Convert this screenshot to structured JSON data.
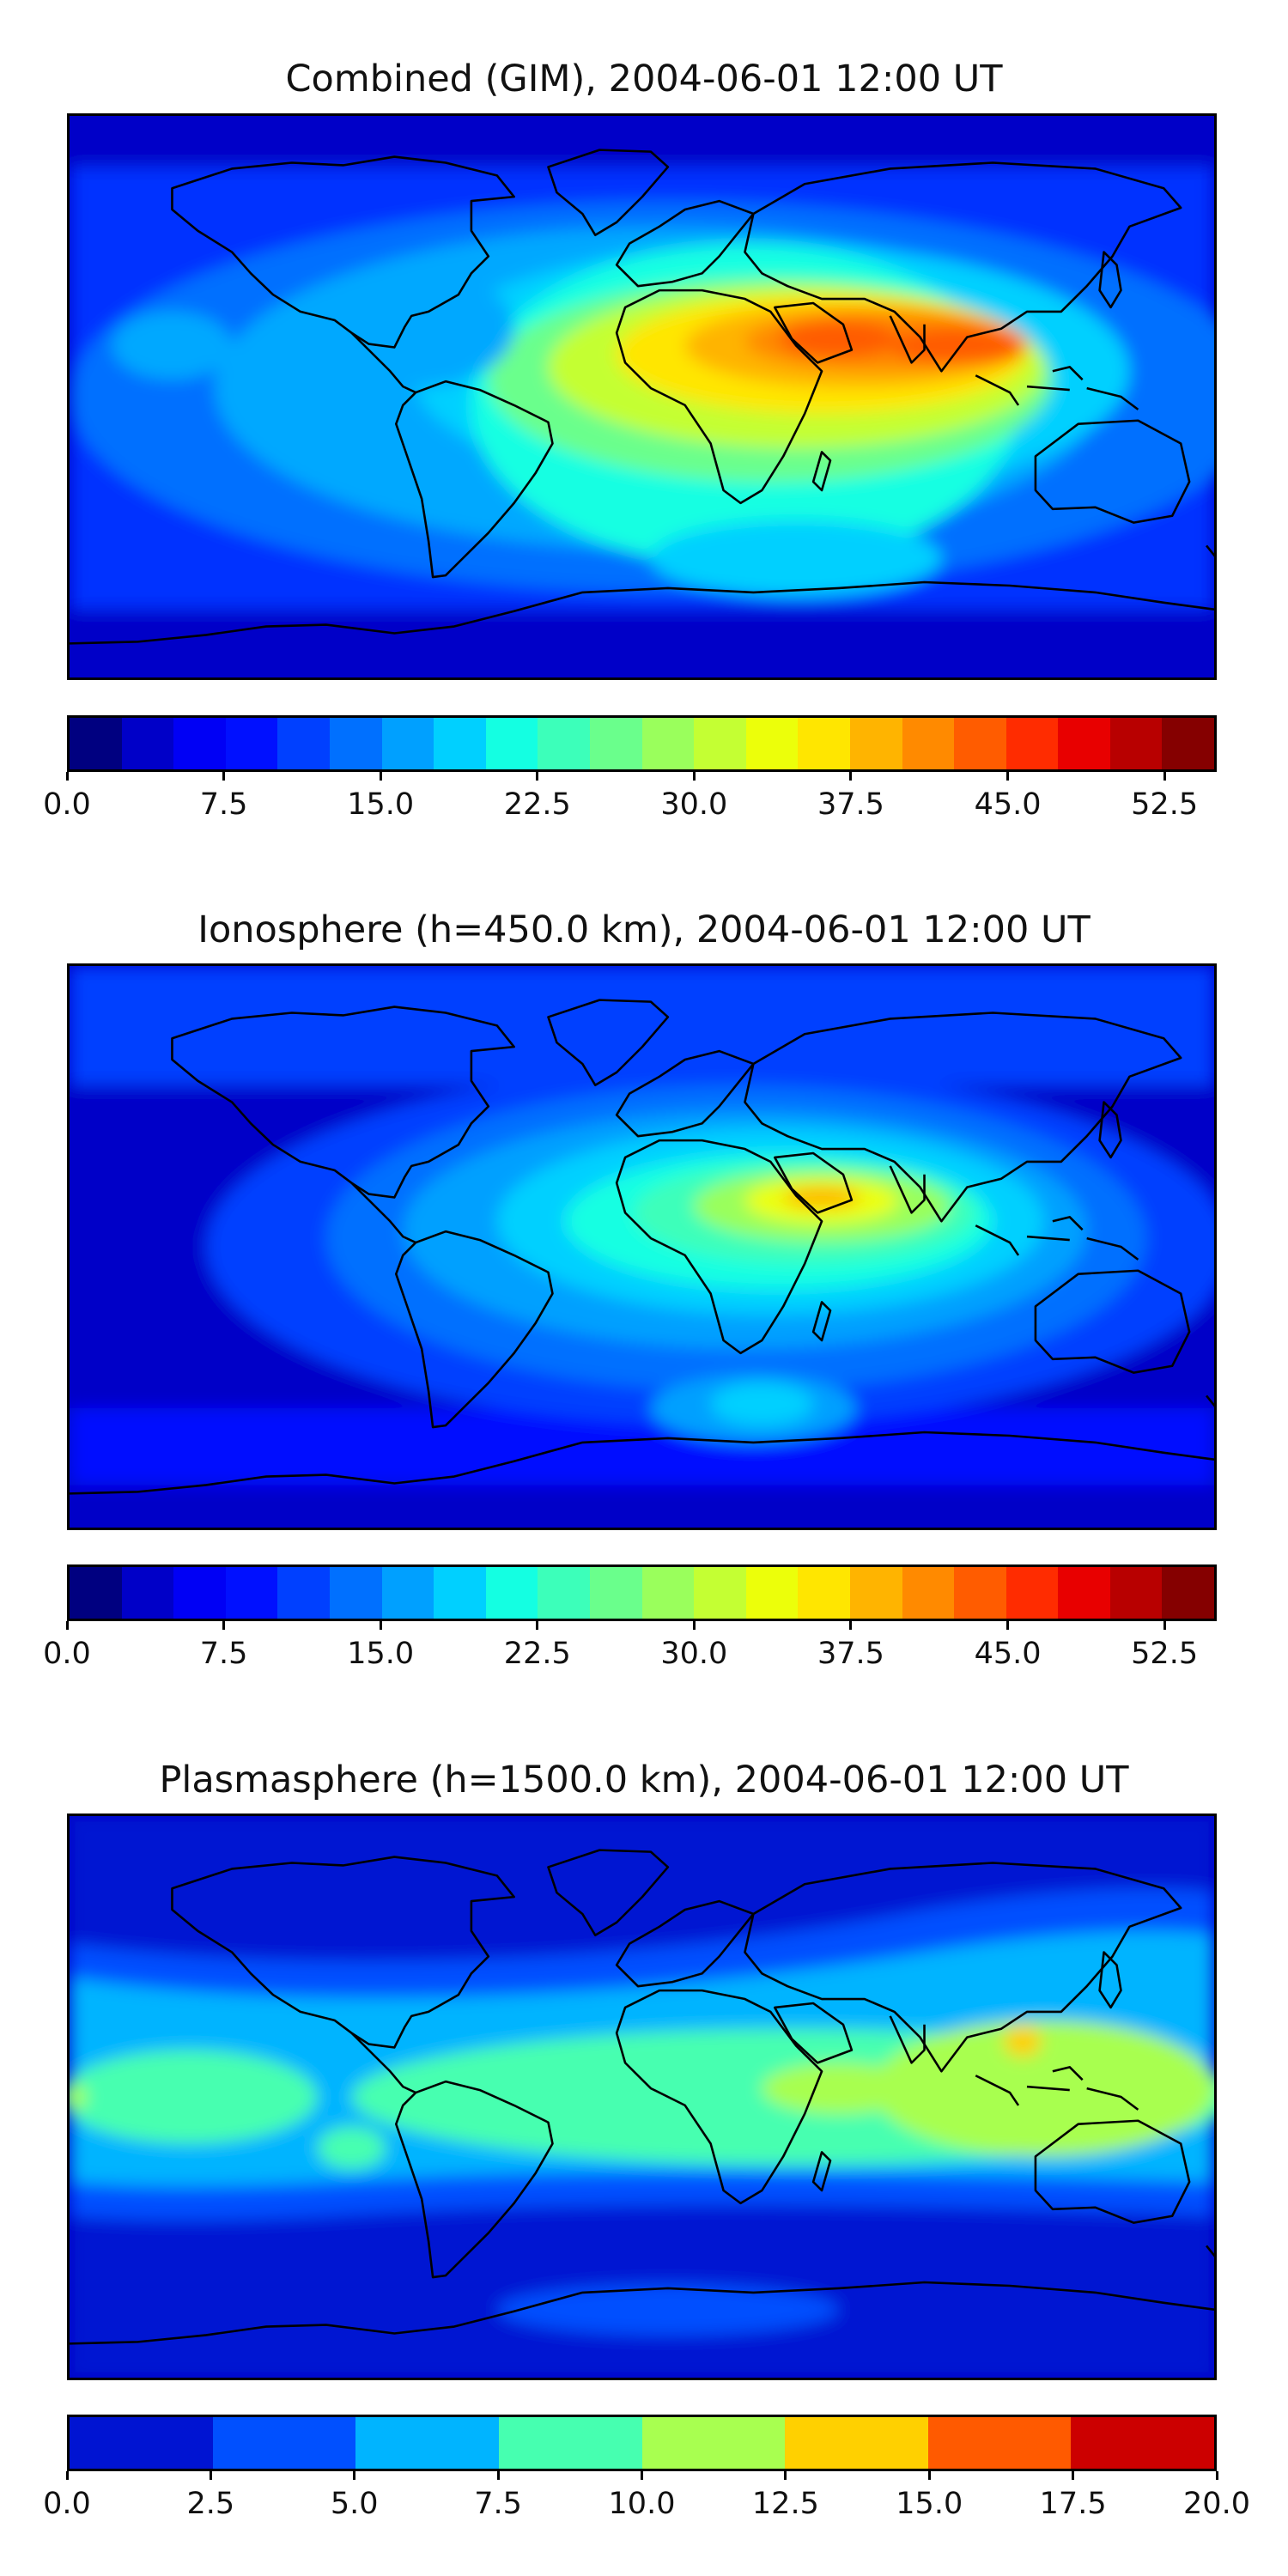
{
  "panels": [
    {
      "title": "Combined (GIM), 2004-06-01 12:00 UT",
      "colorbar": {
        "colors": [
          "#000080",
          "#0000c8",
          "#0000f5",
          "#0010ff",
          "#0040ff",
          "#0070ff",
          "#00a0ff",
          "#00d0ff",
          "#14ffe2",
          "#3cffba",
          "#6aff8c",
          "#9aff5c",
          "#c4ff33",
          "#ecff0a",
          "#ffe600",
          "#ffb400",
          "#ff8a00",
          "#ff5c00",
          "#ff2c00",
          "#e80000",
          "#b80000",
          "#850000"
        ],
        "ticks": [
          "0.0",
          "7.5",
          "15.0",
          "22.5",
          "30.0",
          "37.5",
          "45.0",
          "52.5"
        ],
        "min": 0,
        "max": 55
      }
    },
    {
      "title": "Ionosphere  (h=450.0 km), 2004-06-01 12:00 UT",
      "colorbar": {
        "colors": [
          "#000080",
          "#0000c8",
          "#0000f5",
          "#0010ff",
          "#0040ff",
          "#0070ff",
          "#00a0ff",
          "#00d0ff",
          "#14ffe2",
          "#3cffba",
          "#6aff8c",
          "#9aff5c",
          "#c4ff33",
          "#ecff0a",
          "#ffe600",
          "#ffb400",
          "#ff8a00",
          "#ff5c00",
          "#ff2c00",
          "#e80000",
          "#b80000",
          "#850000"
        ],
        "ticks": [
          "0.0",
          "7.5",
          "15.0",
          "22.5",
          "30.0",
          "37.5",
          "45.0",
          "52.5"
        ],
        "min": 0,
        "max": 55
      }
    },
    {
      "title": "Plasmasphere (h=1500.0 km), 2004-06-01 12:00 UT",
      "colorbar": {
        "colors": [
          "#0014d2",
          "#0050ff",
          "#00b4ff",
          "#46ffb0",
          "#a8ff50",
          "#ffd000",
          "#ff5a00",
          "#cc0000"
        ],
        "ticks": [
          "0.0",
          "2.5",
          "5.0",
          "7.5",
          "10.0",
          "12.5",
          "15.0",
          "17.5",
          "20.0"
        ],
        "min": 0,
        "max": 20
      }
    }
  ]
}
